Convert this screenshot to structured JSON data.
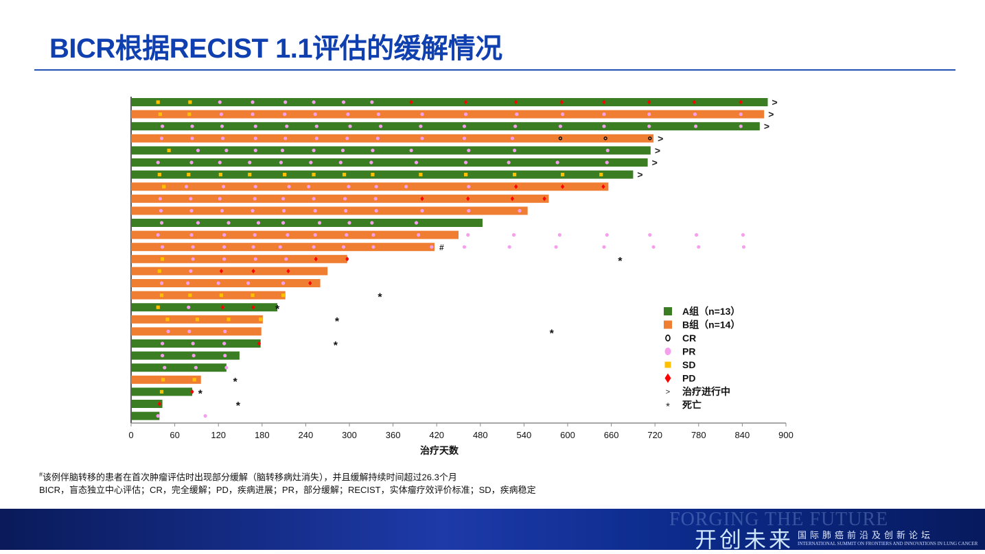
{
  "title": "BICR根据RECIST 1.1评估的缓解情况",
  "notes": {
    "line1_mark": "#",
    "line1": "该例伴脑转移的患者在首次肿瘤评估时出现部分缓解（脑转移病灶消失），并且缓解持续时间超过26.3个月",
    "line2": "BICR，盲态独立中心评估；CR，完全缓解；PD，疾病进展；PR，部分缓解；RECIST，实体瘤疗效评价标准；SD，疾病稳定"
  },
  "footer": {
    "en": "FORGING THE FUTURE",
    "cn": "开创未来",
    "sub": "国际肺癌前沿及创新论坛",
    "sub_en": "INTERNATIONAL SUMMIT ON FRONTIERS AND INNOVATIONS IN LUNG CANCER"
  },
  "chart_data": {
    "type": "swimmer",
    "xlabel": "治疗天数",
    "xlim": [
      0,
      900
    ],
    "xticks": [
      0,
      60,
      120,
      180,
      240,
      300,
      360,
      420,
      480,
      540,
      600,
      660,
      720,
      780,
      840,
      900
    ],
    "colors": {
      "A": "#3a7d22",
      "B": "#ef7d32",
      "PR": "#f5a0ec",
      "SD": "#ffc000",
      "PD": "#ff0000",
      "CR": "#000000"
    },
    "legend": {
      "placement": "bottom-right",
      "items": [
        {
          "key": "A",
          "label": "A组（n=13）"
        },
        {
          "key": "B",
          "label": "B组（n=14）"
        },
        {
          "key": "CR",
          "label": "CR"
        },
        {
          "key": "PR",
          "label": "PR"
        },
        {
          "key": "SD",
          "label": "SD"
        },
        {
          "key": "PD",
          "label": "PD"
        },
        {
          "key": "ongoing",
          "label": "治疗进行中",
          "symbol": ">"
        },
        {
          "key": "death",
          "label": "死亡",
          "symbol": "*"
        }
      ]
    },
    "patients": [
      {
        "group": "A",
        "end": 875,
        "ongoing": true,
        "SD": [
          37,
          81
        ],
        "PR": [
          122,
          167,
          212,
          251,
          292,
          331
        ],
        "PD": [
          385,
          460,
          529,
          592,
          650,
          712,
          774,
          838
        ]
      },
      {
        "group": "B",
        "end": 870,
        "ongoing": true,
        "SD": [
          40,
          80
        ],
        "PR": [
          124,
          167,
          211,
          253,
          298,
          340,
          400,
          460,
          530,
          593,
          650,
          712,
          775,
          838
        ]
      },
      {
        "group": "A",
        "end": 864,
        "ongoing": true,
        "PR": [
          43,
          84,
          125,
          171,
          214,
          255,
          301,
          343,
          398,
          458,
          528,
          590,
          650,
          712,
          776,
          838
        ]
      },
      {
        "group": "B",
        "end": 718,
        "ongoing": true,
        "PR": [
          42,
          84,
          126,
          171,
          212,
          255,
          297,
          339,
          400,
          458,
          524
        ],
        "CR": [
          590,
          652,
          713
        ]
      },
      {
        "group": "A",
        "end": 714,
        "ongoing": true,
        "SD": [
          52
        ],
        "PR": [
          92,
          131,
          171,
          208,
          251,
          291,
          332,
          385,
          464,
          527,
          655
        ]
      },
      {
        "group": "A",
        "end": 710,
        "ongoing": true,
        "PR": [
          37,
          83,
          122,
          163,
          206,
          247,
          288,
          330,
          392,
          460,
          519,
          586,
          654
        ]
      },
      {
        "group": "A",
        "end": 690,
        "ongoing": true,
        "SD": [
          39,
          79,
          123,
          163,
          211,
          251,
          293,
          332,
          398,
          460,
          527,
          593,
          646
        ]
      },
      {
        "group": "B",
        "end": 656,
        "SD": [
          45
        ],
        "PR": [
          76,
          127,
          171,
          217,
          244,
          299,
          337,
          378,
          464
        ],
        "PD": [
          529,
          593,
          649
        ]
      },
      {
        "group": "B",
        "end": 574,
        "PR": [
          40,
          82,
          122,
          170,
          209,
          251,
          294,
          336
        ],
        "PD": [
          400,
          463,
          524,
          568
        ]
      },
      {
        "group": "B",
        "end": 545,
        "PR": [
          41,
          83,
          125,
          167,
          210,
          253,
          295,
          337,
          400,
          464,
          534
        ]
      },
      {
        "group": "A",
        "end": 483,
        "PR": [
          42,
          92,
          134,
          175,
          209,
          259,
          300,
          331,
          392
        ]
      },
      {
        "group": "B",
        "end": 450,
        "PR": [
          37,
          83,
          128,
          170,
          215,
          253,
          296,
          333,
          395
        ],
        "PR_after": [
          463,
          526,
          589,
          654,
          713,
          777,
          841
        ]
      },
      {
        "group": "B",
        "end": 417,
        "mark": "#",
        "PR": [
          43,
          85,
          128,
          168,
          205,
          251,
          292,
          333,
          413
        ],
        "PR_after": [
          458,
          520,
          584,
          650,
          718,
          780,
          842
        ]
      },
      {
        "group": "B",
        "end": 297,
        "SD": [
          43
        ],
        "PR": [
          85,
          128,
          171,
          213
        ],
        "PD": [
          254,
          297
        ],
        "death": 672
      },
      {
        "group": "B",
        "end": 270,
        "SD": [
          39
        ],
        "PR": [
          82
        ],
        "PD": [
          124,
          168,
          216
        ]
      },
      {
        "group": "B",
        "end": 260,
        "PR": [
          42,
          78,
          120,
          161,
          209
        ],
        "PD": [
          246
        ]
      },
      {
        "group": "B",
        "end": 212,
        "SD": [
          42,
          81,
          124,
          167,
          209
        ],
        "death": 342
      },
      {
        "group": "A",
        "end": 201,
        "SD": [
          37
        ],
        "PR": [
          79
        ],
        "PD": [
          126,
          168
        ],
        "death": 201
      },
      {
        "group": "B",
        "end": 181,
        "SD": [
          50,
          91,
          134,
          178
        ],
        "death": 283
      },
      {
        "group": "B",
        "end": 179,
        "PR": [
          51,
          80,
          129
        ],
        "death": 578
      },
      {
        "group": "A",
        "end": 178,
        "PR": [
          43,
          85,
          128
        ],
        "PD": [
          176
        ],
        "death": 281
      },
      {
        "group": "A",
        "end": 149,
        "PR": [
          43,
          86,
          129
        ]
      },
      {
        "group": "A",
        "end": 131,
        "PR": [
          46,
          89,
          131
        ]
      },
      {
        "group": "B",
        "end": 96,
        "SD": [
          44,
          87
        ],
        "death": 143
      },
      {
        "group": "A",
        "end": 84,
        "SD": [
          42
        ],
        "PD": [
          84
        ],
        "death": 95
      },
      {
        "group": "A",
        "end": 43,
        "PD": [
          39
        ],
        "death": 147
      },
      {
        "group": "A",
        "end": 39,
        "PR": [
          37
        ],
        "PR_after": [
          102
        ]
      }
    ]
  }
}
